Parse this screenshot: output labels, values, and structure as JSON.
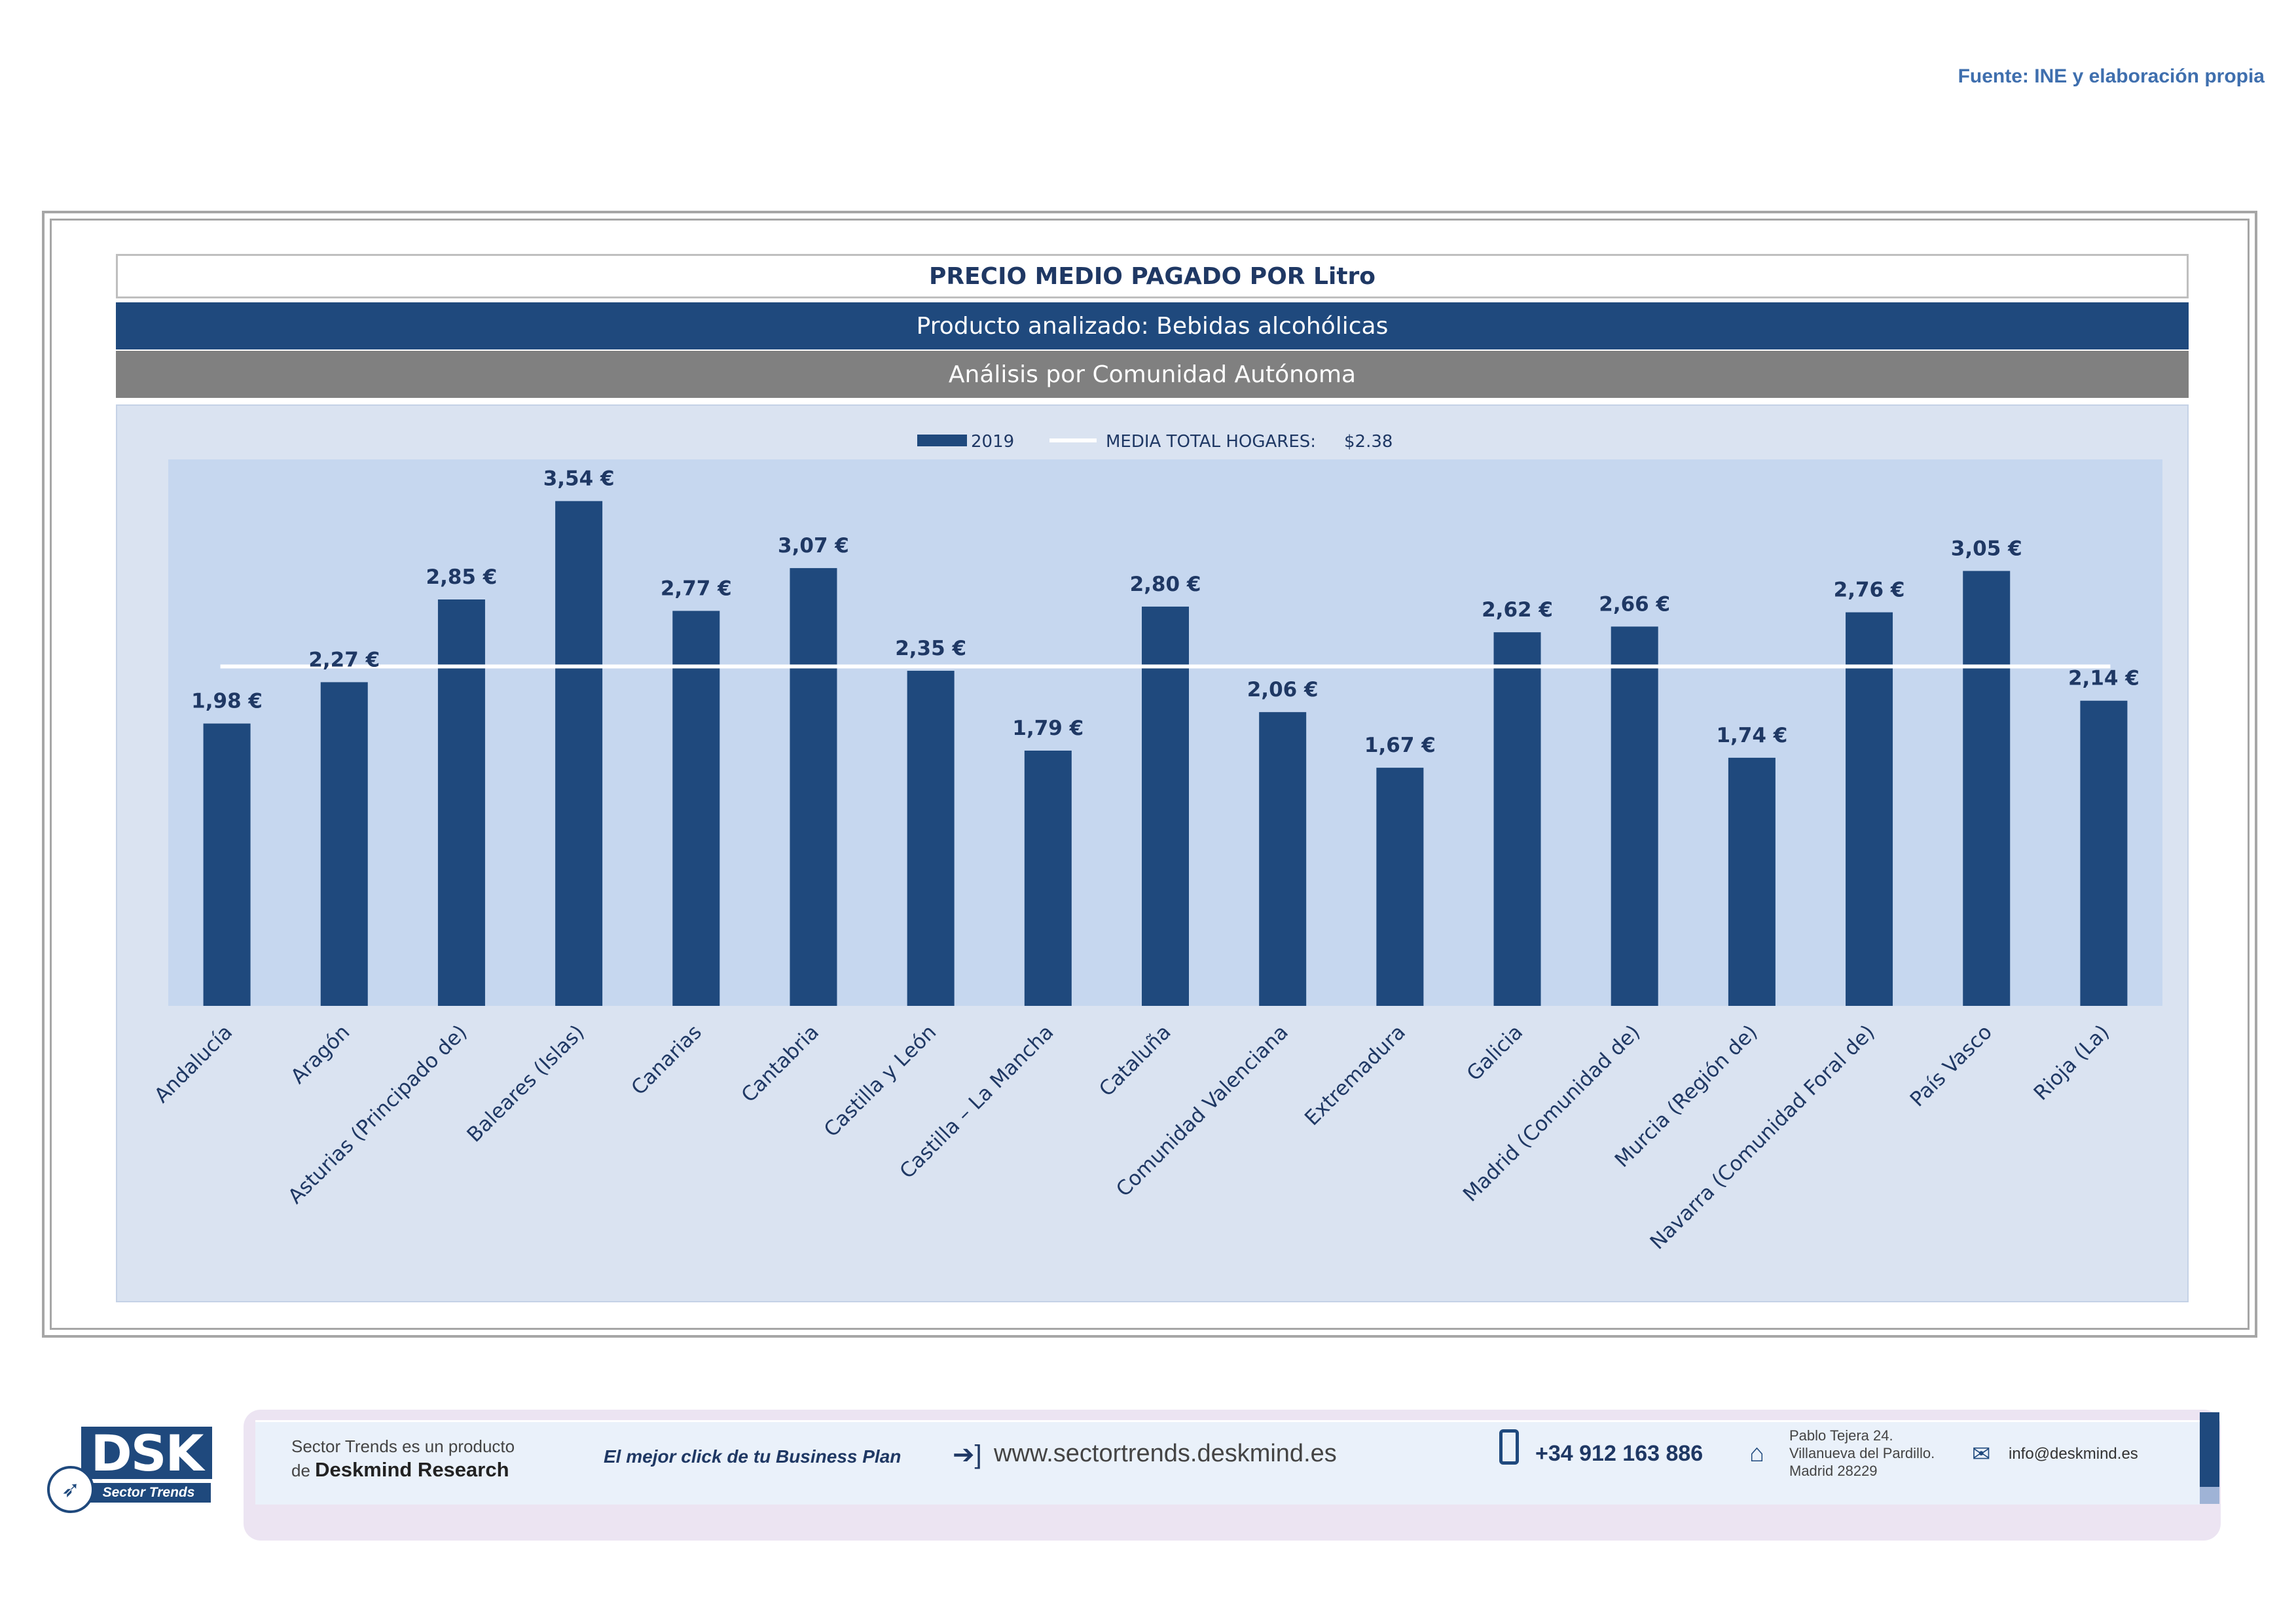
{
  "source_note": "Fuente: INE y elaboración propia",
  "header": {
    "title": "PRECIO MEDIO PAGADO POR Litro",
    "product": "Producto analizado: Bebidas alcohólicas",
    "analysis": "Análisis por Comunidad Autónoma"
  },
  "chart_data": {
    "type": "bar",
    "categories": [
      "Andalucía",
      "Aragón",
      "Asturias (Principado de)",
      "Baleares (Islas)",
      "Canarias",
      "Cantabria",
      "Castilla y León",
      "Castilla – La Mancha",
      "Cataluña",
      "Comunidad Valenciana",
      "Extremadura",
      "Galicia",
      "Madrid (Comunidad de)",
      "Murcia (Región de)",
      "Navarra (Comunidad Foral de)",
      "País Vasco",
      "Rioja (La)"
    ],
    "series": [
      {
        "name": "2019",
        "values": [
          1.98,
          2.27,
          2.85,
          3.54,
          2.77,
          3.07,
          2.35,
          1.79,
          2.8,
          2.06,
          1.67,
          2.62,
          2.66,
          1.74,
          2.76,
          3.05,
          2.14
        ]
      }
    ],
    "data_labels": [
      "1,98 €",
      "2,27 €",
      "2,85 €",
      "3,54 €",
      "2,77 €",
      "3,07 €",
      "2,35 €",
      "1,79 €",
      "2,80 €",
      "2,06 €",
      "1,67 €",
      "2,62 €",
      "2,66 €",
      "1,74 €",
      "2,76 €",
      "3,05 €",
      "2,14 €"
    ],
    "reference_line": {
      "name": "MEDIA TOTAL  HOGARES:",
      "value": 2.38,
      "label": "$2.38"
    },
    "ylim": [
      0,
      4
    ],
    "grid": false,
    "legend_position": "top-center",
    "bar_color": "#1f497d",
    "line_color": "#ffffff"
  },
  "footer": {
    "logo_text": "DSK",
    "logo_subtitle": "Sector Trends",
    "product_line1": "Sector Trends es un producto",
    "product_line2_prefix": "de",
    "product_line2_brand": "Deskmind Research",
    "slogan": "El mejor click de tu Business Plan",
    "website": "www.sectortrends.deskmind.es",
    "phone": "+34 912 163 886",
    "address_line1": "Pablo Tejera 24.",
    "address_line2": "Villanueva del Pardillo.",
    "address_line3": "Madrid 28229",
    "email": "info@deskmind.es"
  }
}
